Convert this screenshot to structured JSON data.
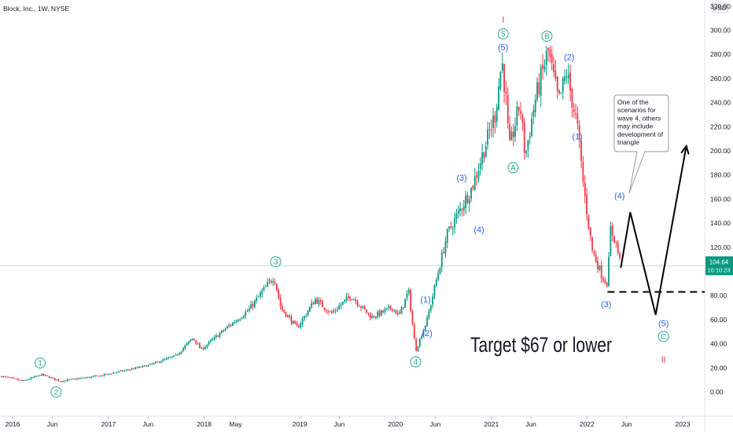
{
  "header": {
    "title": "Block, Inc., 1W, NYSE"
  },
  "currency": "USD",
  "price_badge": {
    "price": "104.64",
    "countdown": "10:10:23",
    "color": "#089981"
  },
  "colors": {
    "up": "#089981",
    "down": "#f23645",
    "wave_green": "#22ab94",
    "wave_blue": "#2962ff",
    "price_line": "#b2dfdb"
  },
  "annotation": {
    "callout_lines": [
      "One of the",
      "scenarios for",
      "wave 4, others",
      "may include",
      "development of",
      "triangle"
    ],
    "target_text": "Target $67 or lower"
  },
  "chart_data": {
    "type": "candlestick",
    "title": "Block, Inc., 1W, NYSE",
    "x_ticks": [
      "2016",
      "Jun",
      "2017",
      "Jun",
      "2018",
      "May",
      "2019",
      "Jun",
      "2020",
      "Jun",
      "2021",
      "Jun",
      "2022",
      "Jun",
      "2023"
    ],
    "x_tick_dates": [
      "2016-01-01",
      "2016-06-01",
      "2017-01-01",
      "2017-06-01",
      "2018-01-01",
      "2018-05-01",
      "2019-01-01",
      "2019-06-01",
      "2020-01-01",
      "2020-06-01",
      "2021-01-01",
      "2021-06-01",
      "2022-01-01",
      "2022-06-01",
      "2023-01-01"
    ],
    "y_ticks": [
      0,
      20,
      40,
      60,
      80,
      100,
      120,
      140,
      160,
      180,
      200,
      220,
      240,
      260,
      280,
      300,
      320
    ],
    "y_tick_labels": [
      "0.00",
      "20.00",
      "40.00",
      "60.00",
      "80.00",
      "100.00",
      "120.00",
      "140.00",
      "160.00",
      "180.00",
      "200.00",
      "220.00",
      "240.00",
      "260.00",
      "280.00",
      "300.00",
      "320.00"
    ],
    "ylim": [
      -22,
      323
    ],
    "last_price": 104.64,
    "price_path": [
      [
        "2015-11-20",
        13
      ],
      [
        "2016-02-10",
        9
      ],
      [
        "2016-04-20",
        14.5
      ],
      [
        "2016-05-10",
        13
      ],
      [
        "2016-07-01",
        9
      ],
      [
        "2016-12-01",
        13.5
      ],
      [
        "2017-06-01",
        22
      ],
      [
        "2017-09-15",
        30
      ],
      [
        "2017-11-20",
        45
      ],
      [
        "2017-12-20",
        35
      ],
      [
        "2018-03-10",
        50
      ],
      [
        "2018-06-20",
        68
      ],
      [
        "2018-09-25",
        96
      ],
      [
        "2018-10-20",
        70
      ],
      [
        "2018-12-22",
        53
      ],
      [
        "2019-03-01",
        77
      ],
      [
        "2019-05-01",
        65
      ],
      [
        "2019-07-15",
        80
      ],
      [
        "2019-10-01",
        62
      ],
      [
        "2019-12-20",
        70
      ],
      [
        "2020-01-15",
        63
      ],
      [
        "2020-02-20",
        84
      ],
      [
        "2020-03-18",
        34
      ],
      [
        "2020-05-01",
        60
      ],
      [
        "2020-07-15",
        130
      ],
      [
        "2020-09-01",
        150
      ],
      [
        "2020-10-20",
        170
      ],
      [
        "2021-01-15",
        230
      ],
      [
        "2021-02-10",
        275
      ],
      [
        "2021-02-25",
        245
      ],
      [
        "2021-03-10",
        200
      ],
      [
        "2021-04-20",
        240
      ],
      [
        "2021-05-10",
        195
      ],
      [
        "2021-06-15",
        240
      ],
      [
        "2021-08-05",
        283
      ],
      [
        "2021-09-15",
        240
      ],
      [
        "2021-10-15",
        265
      ],
      [
        "2021-11-25",
        220
      ],
      [
        "2021-12-20",
        168
      ],
      [
        "2022-01-20",
        118
      ],
      [
        "2022-03-01",
        95
      ],
      [
        "2022-03-20",
        90
      ],
      [
        "2022-04-01",
        135
      ],
      [
        "2022-04-20",
        125
      ],
      [
        "2022-05-10",
        104.64
      ]
    ],
    "wave_labels_circled": [
      {
        "label": "1",
        "date": "2016-04-15",
        "price": 24
      },
      {
        "label": "2",
        "date": "2016-06-15",
        "price": 0
      },
      {
        "label": "3",
        "date": "2018-10-01",
        "price": 108
      },
      {
        "label": "4",
        "date": "2020-03-18",
        "price": 25
      },
      {
        "label": "5",
        "date": "2021-02-15",
        "price": 297
      },
      {
        "label": "A",
        "date": "2021-03-25",
        "price": 186
      },
      {
        "label": "B",
        "date": "2021-08-01",
        "price": 295
      },
      {
        "label": "C",
        "date": "2022-10-20",
        "price": 46
      }
    ],
    "wave_labels_plain": [
      {
        "label": "(1)",
        "date": "2020-04-25",
        "price": 77
      },
      {
        "label": "(2)",
        "date": "2020-05-01",
        "price": 49
      },
      {
        "label": "(3)",
        "date": "2020-09-10",
        "price": 178
      },
      {
        "label": "(4)",
        "date": "2020-11-15",
        "price": 135
      },
      {
        "label": "(5)",
        "date": "2021-02-15",
        "price": 286
      },
      {
        "label": "(2)",
        "date": "2021-10-25",
        "price": 278
      },
      {
        "label": "(1)",
        "date": "2021-11-25",
        "price": 212
      },
      {
        "label": "(3)",
        "date": "2022-03-15",
        "price": 73
      },
      {
        "label": "(4)",
        "date": "2022-05-05",
        "price": 163
      },
      {
        "label": "(5)",
        "date": "2022-10-20",
        "price": 57
      }
    ],
    "red_marks": [
      {
        "label": "I",
        "date": "2021-02-15",
        "price": 309
      },
      {
        "label": "II",
        "date": "2022-10-20",
        "price": 27
      }
    ],
    "projection": [
      [
        "2022-05-10",
        103
      ],
      [
        "2022-06-15",
        149
      ],
      [
        "2022-09-20",
        64
      ],
      [
        "2023-01-15",
        204
      ]
    ],
    "target_level": 83,
    "target_level_from": "2022-03-20"
  }
}
